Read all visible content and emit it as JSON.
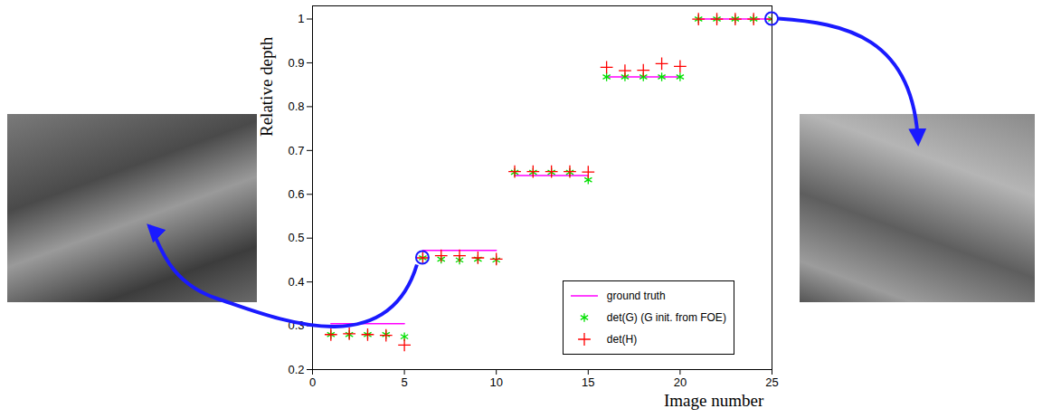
{
  "chart_data": {
    "type": "scatter",
    "xlabel": "Image number",
    "ylabel": "Relative depth",
    "x": [
      1,
      2,
      3,
      4,
      5,
      6,
      7,
      8,
      9,
      10,
      11,
      12,
      13,
      14,
      15,
      16,
      17,
      18,
      19,
      20,
      21,
      22,
      23,
      24,
      25
    ],
    "series": [
      {
        "name": "ground truth",
        "color": "#ff00ff",
        "type": "line",
        "line_style": "solid",
        "values": [
          0.305,
          0.305,
          0.305,
          0.305,
          0.305,
          0.472,
          0.472,
          0.472,
          0.472,
          0.472,
          0.643,
          0.643,
          0.643,
          0.643,
          0.643,
          0.868,
          0.868,
          0.868,
          0.868,
          0.868,
          1.0,
          1.0,
          1.0,
          1.0,
          1.0
        ]
      },
      {
        "name": "det(G) (G init. from FOE)",
        "color": "#00e000",
        "type": "scatter",
        "marker": "asterisk",
        "values": [
          0.28,
          0.28,
          0.28,
          0.28,
          0.275,
          0.455,
          0.452,
          0.45,
          0.452,
          0.45,
          0.65,
          0.65,
          0.65,
          0.65,
          0.633,
          0.868,
          0.868,
          0.868,
          0.868,
          0.868,
          1.0,
          1.0,
          1.0,
          1.0,
          1.0
        ]
      },
      {
        "name": "det(H)",
        "color": "#ff0000",
        "type": "scatter",
        "marker": "plus",
        "values": [
          0.28,
          0.282,
          0.28,
          0.278,
          0.256,
          0.455,
          0.46,
          0.46,
          0.455,
          0.452,
          0.652,
          0.652,
          0.652,
          0.652,
          0.651,
          0.89,
          0.882,
          0.883,
          0.898,
          0.892,
          1.0,
          1.0,
          1.0,
          1.0,
          1.0
        ]
      }
    ],
    "xlim": [
      0,
      25
    ],
    "ylim": [
      0.2,
      1.03
    ],
    "xticks": [
      0,
      5,
      10,
      15,
      20,
      25
    ],
    "yticks": [
      0.2,
      0.3,
      0.4,
      0.5,
      0.6,
      0.7,
      0.8,
      0.9,
      1
    ],
    "grid": false,
    "legend": "lower right"
  }
}
